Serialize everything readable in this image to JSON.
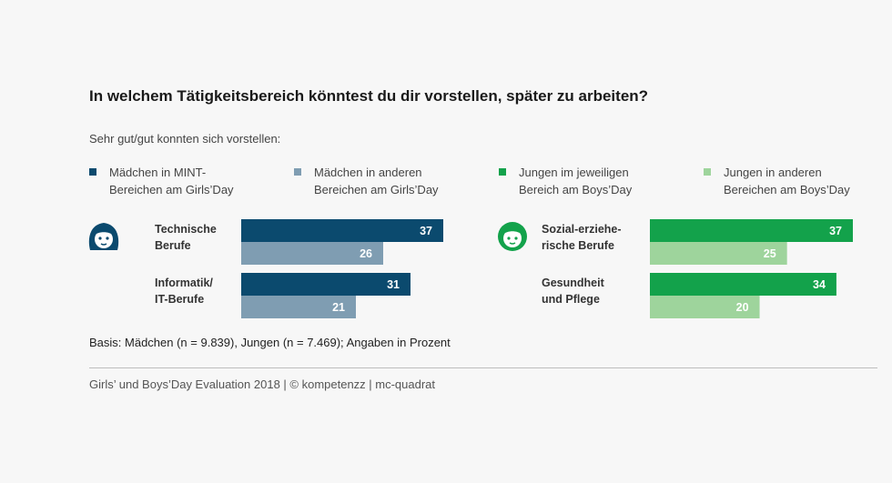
{
  "title": "In welchem Tätigkeitsbereich könntest du dir vorstellen, später zu arbeiten?",
  "subtitle": "Sehr gut/gut konnten sich vorstellen:",
  "legend": [
    {
      "line1": "Mädchen in MINT-",
      "line2": "Bereichen am Girls’Day",
      "color": "#0b4a6e"
    },
    {
      "line1": "Mädchen in anderen",
      "line2": "Bereichen am Girls’Day",
      "color": "#7f9db2"
    },
    {
      "line1": "Jungen im jeweiligen",
      "line2": "Bereich am Boys’Day",
      "color": "#13a24b"
    },
    {
      "line1": "Jungen in anderen",
      "line2": "Bereichen am Boys’Day",
      "color": "#9ed49c"
    }
  ],
  "icons": {
    "left": "girl-face-icon",
    "right": "boy-face-icon"
  },
  "chart_data": [
    {
      "type": "bar",
      "orientation": "horizontal",
      "categories": [
        "Technische Berufe",
        "Informatik/ IT-Berufe"
      ],
      "category_lines": [
        [
          "Technische",
          "Berufe"
        ],
        [
          "Informatik/",
          "IT-Berufe"
        ]
      ],
      "series": [
        {
          "name": "Mädchen in MINT-Bereichen am Girls’Day",
          "values": [
            37,
            31
          ],
          "color": "#0b4a6e"
        },
        {
          "name": "Mädchen in anderen Bereichen am Girls’Day",
          "values": [
            26,
            21
          ],
          "color": "#7f9db2"
        }
      ],
      "xlim": [
        0,
        37
      ],
      "data_labels": true,
      "grid": false
    },
    {
      "type": "bar",
      "orientation": "horizontal",
      "categories": [
        "Sozial-erziehe-rische Berufe",
        "Gesundheit und Pflege"
      ],
      "category_lines": [
        [
          "Sozial-erziehe-",
          "rische Berufe"
        ],
        [
          "Gesundheit",
          "und Pflege"
        ]
      ],
      "series": [
        {
          "name": "Jungen im jeweiligen Bereich am Boys’Day",
          "values": [
            37,
            34
          ],
          "color": "#13a24b"
        },
        {
          "name": "Jungen in anderen Bereichen am Boys’Day",
          "values": [
            25,
            20
          ],
          "color": "#9ed49c"
        }
      ],
      "xlim": [
        0,
        37
      ],
      "data_labels": true,
      "grid": false
    }
  ],
  "basis": "Basis: Mädchen (n = 9.839), Jungen (n = 7.469); Angaben in Prozent",
  "footer": "Girls’ und Boys’Day Evaluation 2018 | © kompetenzz | mc-quadrat"
}
